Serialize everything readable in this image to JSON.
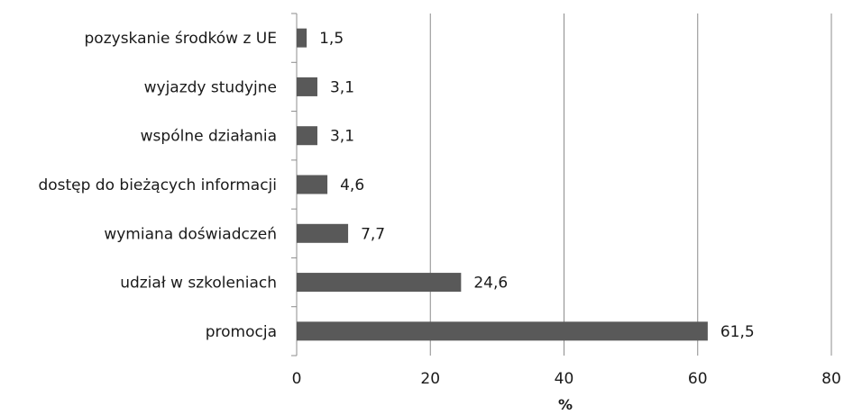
{
  "chart_data": {
    "type": "bar",
    "orientation": "horizontal",
    "categories": [
      "pozyskanie środków z UE",
      "wyjazdy studyjne",
      "wspólne działania",
      "dostęp do bieżących informacji",
      "wymiana doświadczeń",
      "udział w szkoleniach",
      "promocja"
    ],
    "values": [
      1.5,
      3.1,
      3.1,
      4.6,
      7.7,
      24.6,
      61.5
    ],
    "data_labels": [
      "1,5",
      "3,1",
      "3,1",
      "4,6",
      "7,7",
      "24,6",
      "61,5"
    ],
    "xlabel": "%",
    "ylabel": "",
    "xlim": [
      0,
      80
    ],
    "xticks": [
      0,
      20,
      40,
      60,
      80
    ],
    "xtick_labels": [
      "0",
      "20",
      "40",
      "60",
      "80"
    ],
    "grid": "vertical",
    "legend": "none",
    "bar_color": "#595959",
    "grid_color": "#8c8c8c"
  }
}
